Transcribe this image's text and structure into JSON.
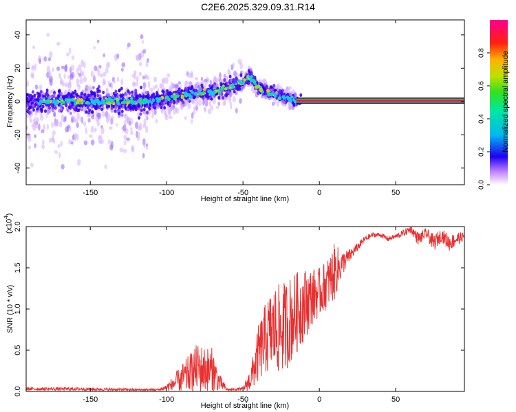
{
  "title": "C2E6.2025.329.09.31.R14",
  "colors": {
    "line": "#e83030",
    "ridge_dark": "#3a0a6a",
    "ridge_fill": "#e8145a",
    "ridge_edge": "#34c83a",
    "noise_light": "#d9b8ff",
    "noise_mid": "#a070ff",
    "noise_dark": "#3300ee"
  },
  "chart_data": [
    {
      "type": "heatmap",
      "title": "C2E6.2025.329.09.31.R14",
      "xlabel": "Height of straight line (km)",
      "ylabel": "Frequency (Hz)",
      "xlim": [
        -192,
        95
      ],
      "ylim": [
        -50,
        49
      ],
      "xticks": [
        -150,
        -100,
        -50,
        0,
        50
      ],
      "yticks": [
        -40,
        -20,
        0,
        20,
        40
      ],
      "colorbar": {
        "label": "Normalized spectral amplitude",
        "range": [
          0,
          1
        ],
        "ticks": [
          "0.0",
          "0.2",
          "0.4",
          "0.6",
          "0.8"
        ]
      },
      "ridge": {
        "x": [
          -192,
          -160,
          -130,
          -110,
          -100,
          -90,
          -80,
          -70,
          -60,
          -50,
          -45,
          -40,
          -30,
          -20,
          -15,
          0,
          95
        ],
        "freq": [
          0,
          0,
          0,
          0,
          2,
          4,
          5,
          6,
          8,
          12,
          15,
          8,
          5,
          2,
          0.5,
          0.5,
          0.5
        ]
      }
    },
    {
      "type": "line",
      "xlabel": "Height of straight line (km)",
      "ylabel": "SNR (10 * v/v)",
      "yscale_label": "(x10",
      "yscale_exp": "4",
      "yscale_close": ")",
      "xlim": [
        -192,
        95
      ],
      "ylim": [
        0,
        2.0
      ],
      "xticks": [
        -150,
        -100,
        -50,
        0,
        50
      ],
      "yticks": [
        "0.0",
        "0.5",
        "1.0",
        "1.5",
        "2.0"
      ],
      "series": [
        {
          "name": "SNR",
          "x": [
            -192,
            -160,
            -120,
            -105,
            -100,
            -90,
            -80,
            -70,
            -65,
            -60,
            -50,
            -45,
            -40,
            -35,
            -30,
            -25,
            -20,
            -15,
            -10,
            -5,
            0,
            5,
            10,
            15,
            20,
            25,
            30,
            35,
            40,
            45,
            50,
            55,
            60,
            65,
            70,
            75,
            80,
            85,
            90,
            95
          ],
          "base": [
            0.03,
            0.03,
            0.02,
            0.02,
            0.05,
            0.15,
            0.28,
            0.25,
            0.1,
            0.02,
            0.03,
            0.15,
            0.45,
            0.65,
            0.75,
            0.75,
            0.85,
            0.95,
            1.05,
            1.15,
            1.2,
            1.3,
            1.45,
            1.55,
            1.65,
            1.75,
            1.85,
            1.9,
            1.9,
            1.85,
            1.88,
            1.92,
            1.97,
            1.85,
            1.92,
            1.8,
            1.9,
            1.8,
            1.85,
            1.88
          ],
          "noise": [
            0.02,
            0.02,
            0.015,
            0.015,
            0.04,
            0.18,
            0.3,
            0.28,
            0.1,
            0.01,
            0.02,
            0.15,
            0.35,
            0.45,
            0.55,
            0.55,
            0.55,
            0.5,
            0.45,
            0.35,
            0.3,
            0.3,
            0.35,
            0.15,
            0.08,
            0.05,
            0.04,
            0.03,
            0.03,
            0.03,
            0.03,
            0.04,
            0.05,
            0.08,
            0.06,
            0.1,
            0.08,
            0.1,
            0.08,
            0.05
          ]
        }
      ]
    }
  ]
}
